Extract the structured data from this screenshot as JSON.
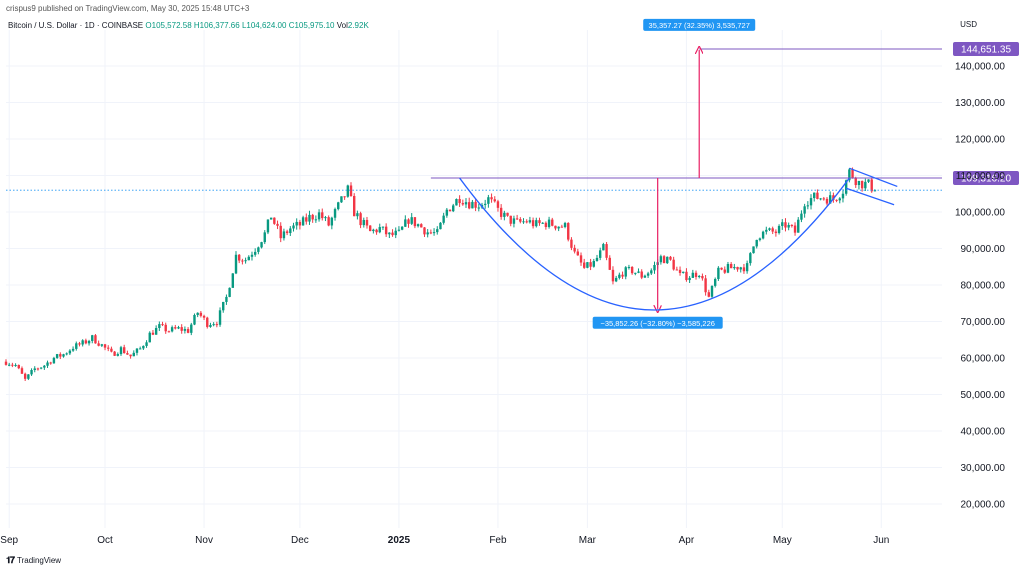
{
  "header": {
    "publisher": "crispus9 published on TradingView.com, May 30, 2025 15:48 UTC+3",
    "symbol": "Bitcoin / U.S. Dollar · 1D · COINBASE",
    "open": "O105,572.58",
    "high": "H106,377.66",
    "low": "L104,624.00",
    "close": "C105,975.10",
    "vol_label": "Vol",
    "vol": "2.92K",
    "currency": "USD"
  },
  "footer": {
    "brand": "TradingView",
    "logo": "TV-logo-icon"
  },
  "colors": {
    "up": "#089981",
    "down": "#f23645",
    "line": "#2962ff",
    "level": "#7e57c2",
    "arrow": "#e91e63",
    "label_bg": "#2196f3"
  },
  "chart_data": {
    "type": "candlestick",
    "ylim": [
      15000,
      160000
    ],
    "y_ticks": [
      "20,000.00",
      "30,000.00",
      "40,000.00",
      "50,000.00",
      "60,000.00",
      "70,000.00",
      "80,000.00",
      "90,000.00",
      "100,000.00",
      "110,000.00",
      "120,000.00",
      "130,000.00",
      "140,000.00"
    ],
    "x_ticks": [
      "Sep",
      "Oct",
      "Nov",
      "Dec",
      "2025",
      "Feb",
      "Mar",
      "Apr",
      "May",
      "Jun"
    ],
    "x_start": "2024-08-31",
    "x_end": "2025-06-20",
    "closes": [
      [
        "2024-08-31",
        59000
      ],
      [
        "2024-09-03",
        58000
      ],
      [
        "2024-09-06",
        54000
      ],
      [
        "2024-09-09",
        57000
      ],
      [
        "2024-09-12",
        58000
      ],
      [
        "2024-09-15",
        60000
      ],
      [
        "2024-09-18",
        61000
      ],
      [
        "2024-09-21",
        63000
      ],
      [
        "2024-09-24",
        64000
      ],
      [
        "2024-09-27",
        65500
      ],
      [
        "2024-09-30",
        63500
      ],
      [
        "2024-10-03",
        61000
      ],
      [
        "2024-10-06",
        62500
      ],
      [
        "2024-10-09",
        60500
      ],
      [
        "2024-10-12",
        62500
      ],
      [
        "2024-10-15",
        66500
      ],
      [
        "2024-10-18",
        68500
      ],
      [
        "2024-10-21",
        67500
      ],
      [
        "2024-10-24",
        68000
      ],
      [
        "2024-10-27",
        67500
      ],
      [
        "2024-10-30",
        72500
      ],
      [
        "2024-11-02",
        69500
      ],
      [
        "2024-11-05",
        70000
      ],
      [
        "2024-11-08",
        76500
      ],
      [
        "2024-11-11",
        88000
      ],
      [
        "2024-11-14",
        87000
      ],
      [
        "2024-11-17",
        90000
      ],
      [
        "2024-11-20",
        94000
      ],
      [
        "2024-11-22",
        99000
      ],
      [
        "2024-11-25",
        93000
      ],
      [
        "2024-11-28",
        95500
      ],
      [
        "2024-12-01",
        96500
      ],
      [
        "2024-12-04",
        98500
      ],
      [
        "2024-12-07",
        99500
      ],
      [
        "2024-12-10",
        96500
      ],
      [
        "2024-12-13",
        101500
      ],
      [
        "2024-12-16",
        106000
      ],
      [
        "2024-12-18",
        100000
      ],
      [
        "2024-12-20",
        97500
      ],
      [
        "2024-12-23",
        94500
      ],
      [
        "2024-12-26",
        95500
      ],
      [
        "2024-12-29",
        93500
      ],
      [
        "2025-01-01",
        94000
      ],
      [
        "2025-01-04",
        98000
      ],
      [
        "2025-01-07",
        96500
      ],
      [
        "2025-01-10",
        94500
      ],
      [
        "2025-01-13",
        94000
      ],
      [
        "2025-01-16",
        100500
      ],
      [
        "2025-01-20",
        104000
      ],
      [
        "2025-01-23",
        102500
      ],
      [
        "2025-01-26",
        102000
      ],
      [
        "2025-01-29",
        103500
      ],
      [
        "2025-02-01",
        100500
      ],
      [
        "2025-02-04",
        98000
      ],
      [
        "2025-02-07",
        97000
      ],
      [
        "2025-02-10",
        97500
      ],
      [
        "2025-02-13",
        96500
      ],
      [
        "2025-02-16",
        97000
      ],
      [
        "2025-02-19",
        96500
      ],
      [
        "2025-02-22",
        96000
      ],
      [
        "2025-02-25",
        88500
      ],
      [
        "2025-02-28",
        84500
      ],
      [
        "2025-03-03",
        86000
      ],
      [
        "2025-03-06",
        90000
      ],
      [
        "2025-03-09",
        80500
      ],
      [
        "2025-03-12",
        83500
      ],
      [
        "2025-03-15",
        84000
      ],
      [
        "2025-03-18",
        82500
      ],
      [
        "2025-03-21",
        84000
      ],
      [
        "2025-03-24",
        87500
      ],
      [
        "2025-03-27",
        86500
      ],
      [
        "2025-03-30",
        82500
      ],
      [
        "2025-04-02",
        82500
      ],
      [
        "2025-04-05",
        83500
      ],
      [
        "2025-04-08",
        76500
      ],
      [
        "2025-04-11",
        83500
      ],
      [
        "2025-04-14",
        84500
      ],
      [
        "2025-04-17",
        85000
      ],
      [
        "2025-04-20",
        85000
      ],
      [
        "2025-04-23",
        93500
      ],
      [
        "2025-04-26",
        94500
      ],
      [
        "2025-04-29",
        94500
      ],
      [
        "2025-05-02",
        96500
      ],
      [
        "2025-05-05",
        94500
      ],
      [
        "2025-05-08",
        103000
      ],
      [
        "2025-05-11",
        104000
      ],
      [
        "2025-05-14",
        104000
      ],
      [
        "2025-05-17",
        103500
      ],
      [
        "2025-05-20",
        106000
      ],
      [
        "2025-05-22",
        111000
      ],
      [
        "2025-05-25",
        108000
      ],
      [
        "2025-05-28",
        107500
      ],
      [
        "2025-05-30",
        105975
      ]
    ],
    "levels": [
      {
        "value": 109316.2,
        "label": "109,316.20"
      },
      {
        "value": 144651.35,
        "label": "144,651.35"
      }
    ],
    "annotations": [
      {
        "text": "35,357.27 (32.35%) 3,535,727"
      },
      {
        "text": "−35,852.26 (−32.80%) −3,585,226"
      }
    ],
    "current_price": 105975.1
  }
}
